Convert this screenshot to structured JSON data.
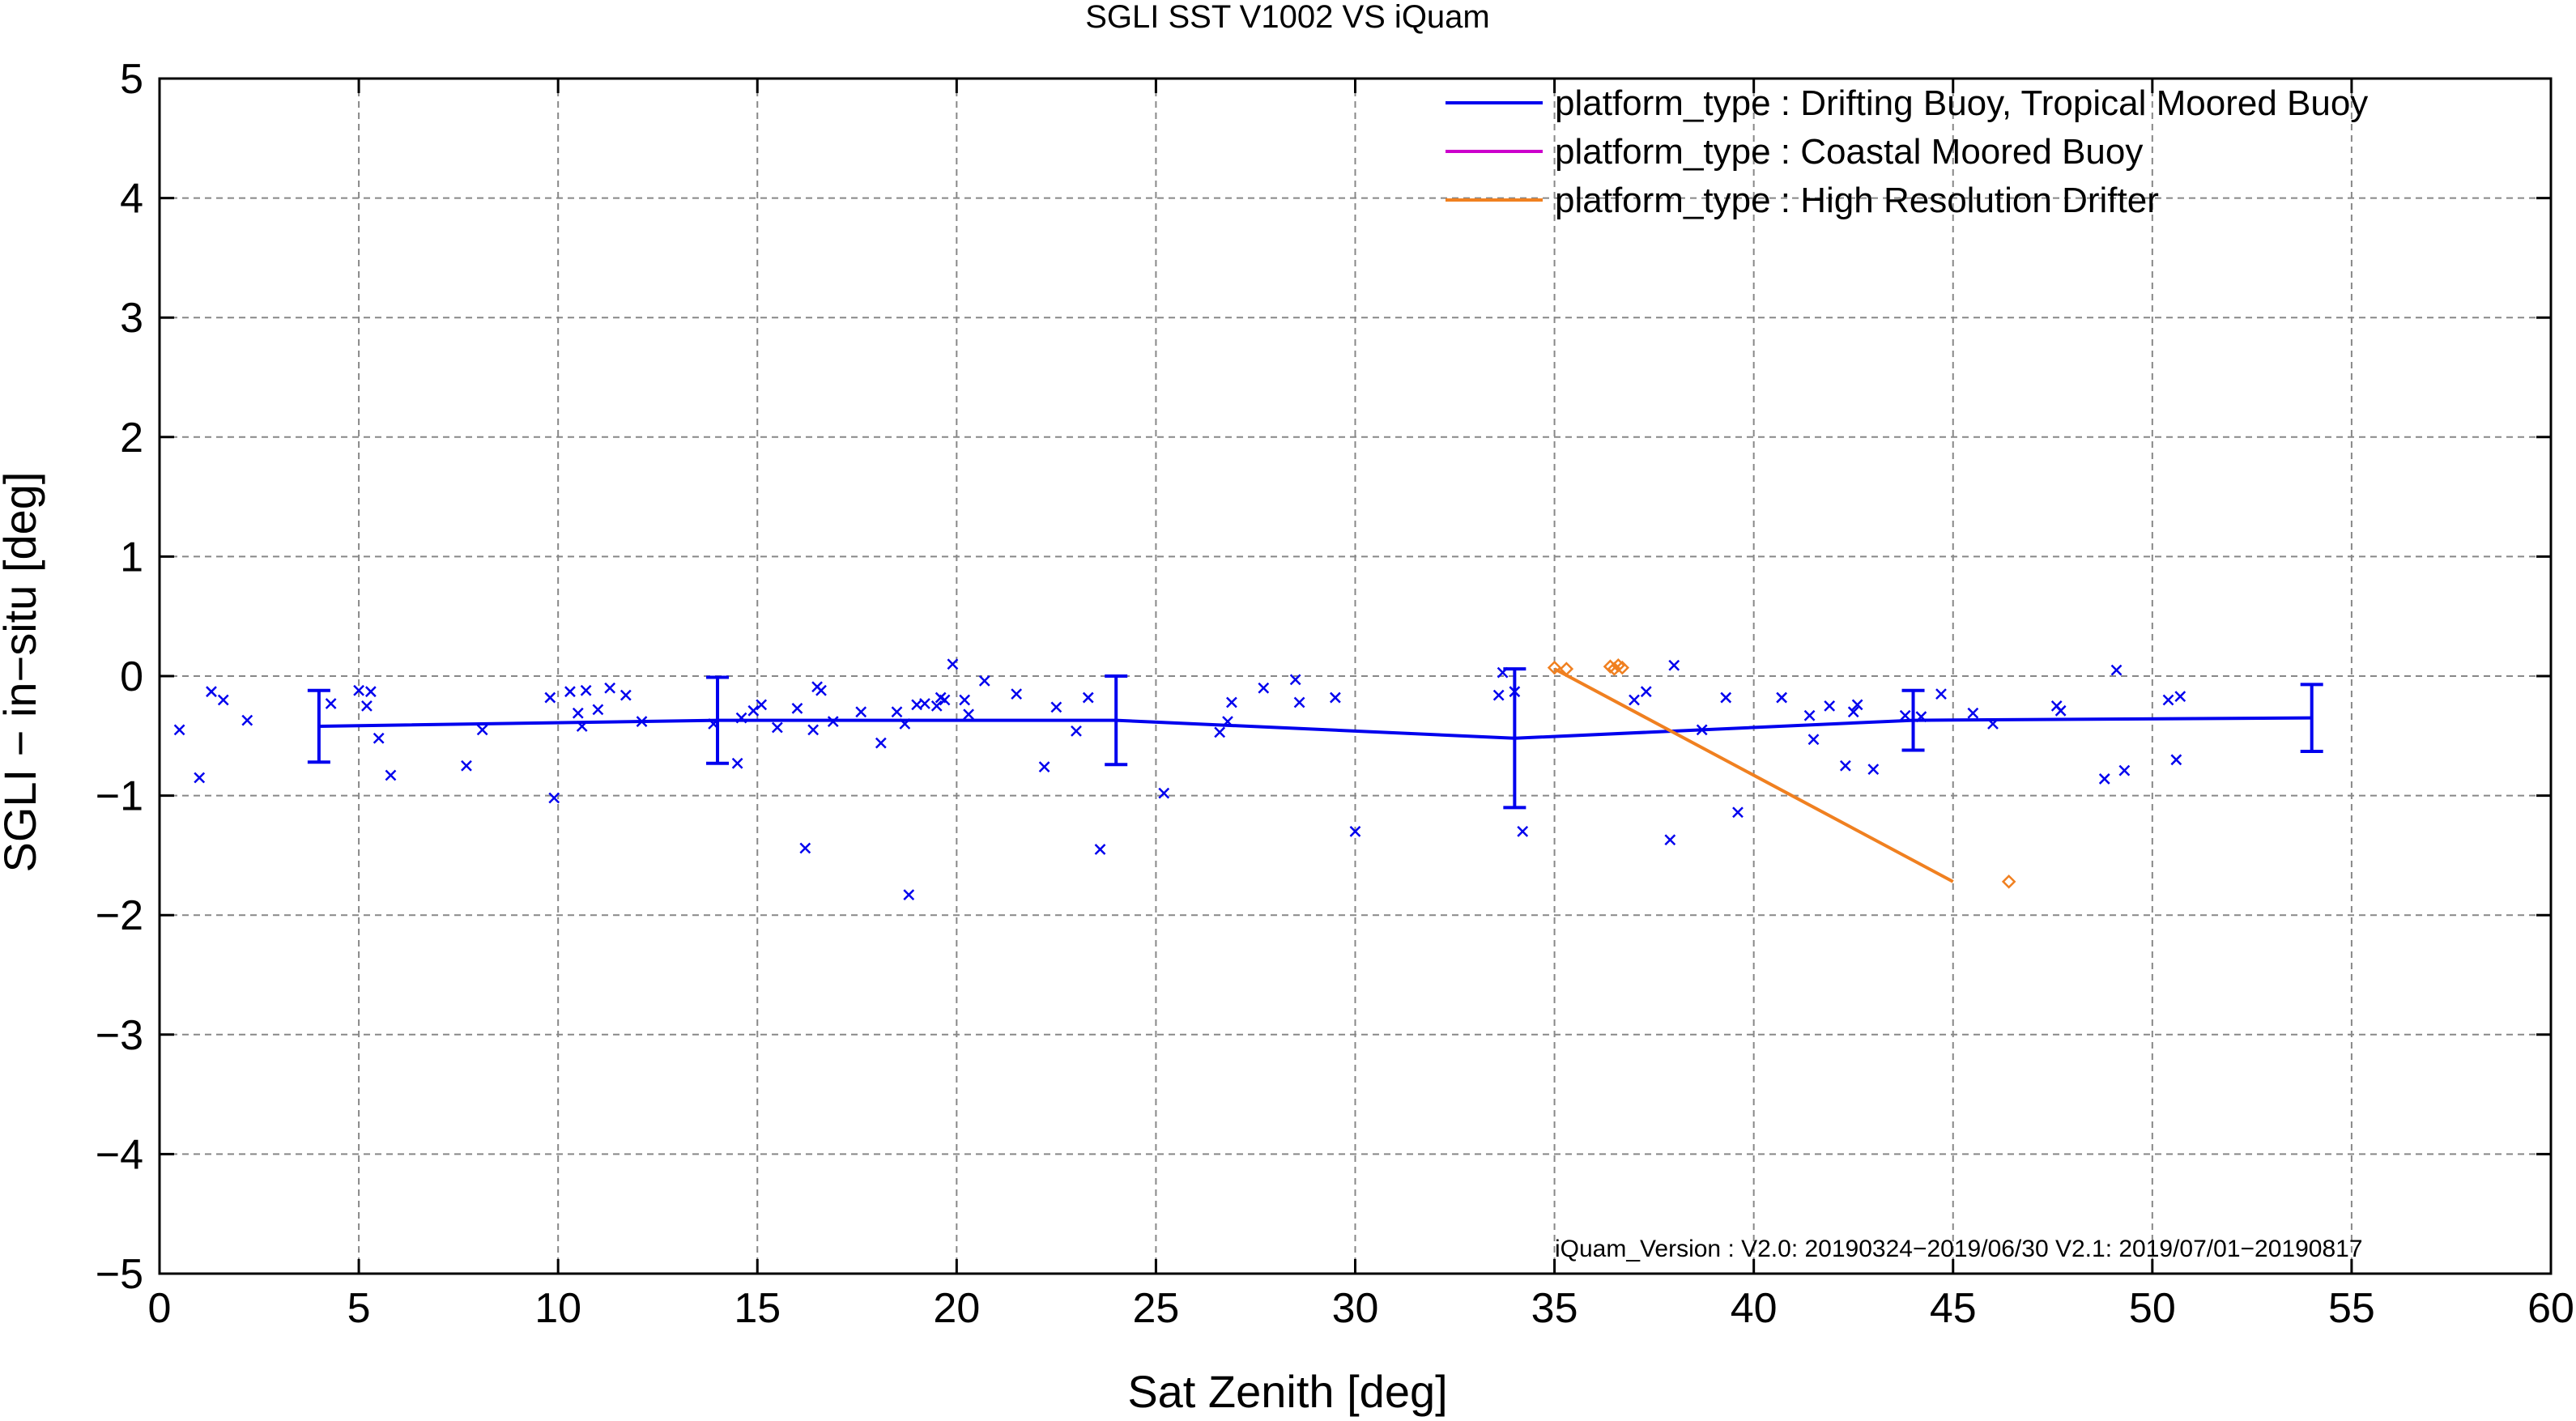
{
  "chart_data": {
    "type": "scatter",
    "title": "SGLI SST V1002 VS iQuam",
    "xlabel": "Sat Zenith [deg]",
    "ylabel": "SGLI − in−situ [deg]",
    "xlim": [
      0,
      60
    ],
    "ylim": [
      -5,
      5
    ],
    "xticks": [
      "0",
      "5",
      "10",
      "15",
      "20",
      "25",
      "30",
      "35",
      "40",
      "45",
      "50",
      "55",
      "60"
    ],
    "yticks": [
      "−5",
      "−4",
      "−3",
      "−2",
      "−1",
      "0",
      "1",
      "2",
      "3",
      "4",
      "5"
    ],
    "grid": true,
    "legend_position": "top-right",
    "annotation": "iQuam_Version :  V2.0: 20190324−2019/06/30 V2.1: 2019/07/01−20190817",
    "series": [
      {
        "name": "platform_type : Drifting Buoy, Tropical Moored Buoy",
        "color": "#0000ee",
        "line": {
          "x": [
            4,
            14,
            24,
            34,
            44,
            54
          ],
          "y": [
            -0.42,
            -0.37,
            -0.37,
            -0.52,
            -0.37,
            -0.35
          ],
          "err": [
            0.3,
            0.36,
            0.37,
            0.58,
            0.25,
            0.28
          ]
        },
        "points": {
          "x": [
            0.5,
            1.0,
            1.3,
            1.6,
            2.2,
            4.3,
            5.0,
            5.2,
            5.3,
            5.5,
            5.8,
            7.7,
            8.1,
            9.8,
            9.9,
            10.3,
            10.5,
            10.6,
            10.7,
            11.0,
            11.3,
            11.7,
            12.1,
            13.9,
            14.5,
            14.6,
            14.9,
            15.1,
            15.5,
            16.0,
            16.2,
            16.4,
            16.5,
            16.6,
            16.9,
            17.6,
            18.1,
            18.5,
            18.7,
            18.8,
            19.0,
            19.2,
            19.5,
            19.6,
            19.7,
            19.9,
            20.2,
            20.3,
            20.7,
            21.5,
            22.2,
            22.5,
            23.0,
            23.3,
            23.6,
            25.2,
            26.6,
            26.8,
            26.9,
            27.7,
            28.5,
            28.6,
            29.5,
            30.0,
            33.6,
            33.7,
            34.0,
            34.2,
            37.0,
            37.3,
            37.9,
            38.0,
            38.7,
            39.3,
            39.6,
            40.7,
            41.4,
            41.5,
            41.9,
            42.3,
            42.5,
            42.6,
            43.0,
            43.8,
            44.2,
            44.7,
            45.5,
            46.0,
            47.6,
            47.7,
            48.8,
            49.1,
            49.3,
            50.4,
            50.6,
            50.7
          ],
          "y": [
            -0.45,
            -0.85,
            -0.13,
            -0.2,
            -0.37,
            -0.23,
            -0.12,
            -0.25,
            -0.13,
            -0.52,
            -0.83,
            -0.75,
            -0.45,
            -0.18,
            -1.02,
            -0.13,
            -0.31,
            -0.42,
            -0.12,
            -0.28,
            -0.1,
            -0.16,
            -0.38,
            -0.4,
            -0.73,
            -0.35,
            -0.29,
            -0.24,
            -0.43,
            -0.27,
            -1.44,
            -0.45,
            -0.09,
            -0.12,
            -0.38,
            -0.3,
            -0.56,
            -0.3,
            -0.4,
            -1.83,
            -0.24,
            -0.23,
            -0.25,
            -0.18,
            -0.2,
            0.1,
            -0.2,
            -0.32,
            -0.04,
            -0.15,
            -0.76,
            -0.26,
            -0.46,
            -0.18,
            -1.45,
            -0.98,
            -0.47,
            -0.38,
            -0.22,
            -0.1,
            -0.03,
            -0.22,
            -0.18,
            -1.3,
            -0.16,
            0.03,
            -0.13,
            -1.3,
            -0.2,
            -0.13,
            -1.37,
            0.09,
            -0.45,
            -0.18,
            -1.14,
            -0.18,
            -0.33,
            -0.53,
            -0.25,
            -0.75,
            -0.3,
            -0.24,
            -0.78,
            -0.33,
            -0.34,
            -0.15,
            -0.31,
            -0.4,
            -0.25,
            -0.29,
            -0.86,
            0.05,
            -0.79,
            -0.2,
            -0.7,
            -0.17
          ]
        }
      },
      {
        "name": "platform_type : Coastal Moored Buoy",
        "color": "#cc00cc",
        "points": {
          "x": [],
          "y": []
        }
      },
      {
        "name": "platform_type : High Resolution Drifter",
        "color": "#f08020",
        "line": {
          "x": [
            35,
            45
          ],
          "y": [
            0.06,
            -1.72
          ]
        },
        "points": {
          "x": [
            35.0,
            35.3,
            36.4,
            36.5,
            36.6,
            36.7,
            46.4
          ],
          "y": [
            0.07,
            0.06,
            0.08,
            0.06,
            0.09,
            0.07,
            -1.72
          ]
        }
      }
    ]
  }
}
